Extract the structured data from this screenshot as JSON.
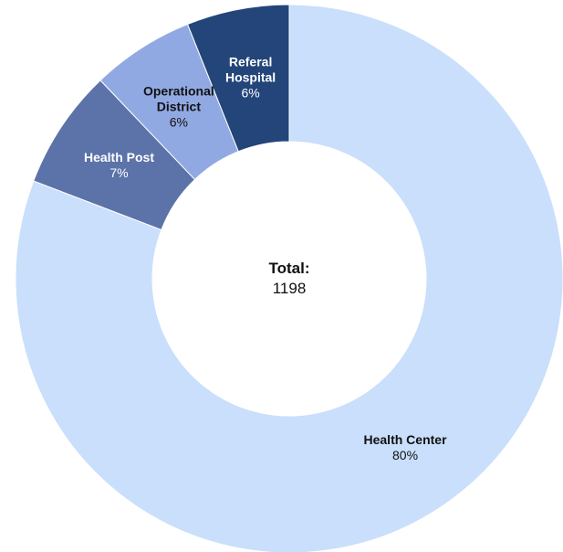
{
  "chart_data": {
    "type": "donut",
    "categories": [
      "Health Center",
      "Health Post",
      "Operational District",
      "Referal Hospital"
    ],
    "values": [
      80,
      7,
      6,
      6
    ],
    "value_labels": [
      "80%",
      "7%",
      "6%",
      "6%"
    ],
    "colors": [
      "#c9dffb",
      "#5b73a8",
      "#91a9e3",
      "#23457a"
    ],
    "center_label": "Total:",
    "total": 1198
  }
}
